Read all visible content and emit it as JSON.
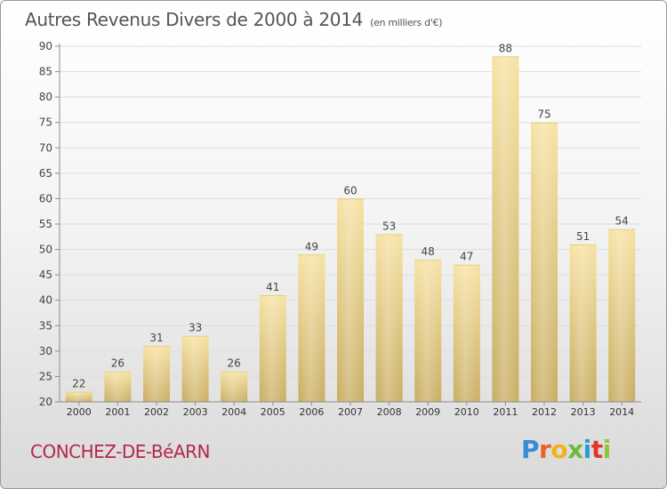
{
  "header": {
    "title": "Autres Revenus Divers de 2000 à 2014",
    "subtitle": "(en milliers d'€)"
  },
  "footer": {
    "place": "CONCHEZ-DE-BéARN",
    "brand": "Proxiti"
  },
  "brand_colors": [
    "#3a8bd6",
    "#e8632b",
    "#f2b21b",
    "#6dbb3a",
    "#2c9ad6",
    "#e0362c",
    "#8cc63f"
  ],
  "colors": {
    "bar_light": "#f7e2a2",
    "bar_dark": "#c8ad62",
    "place": "#b5274b",
    "axis": "#8c8c8c",
    "grid": "#dddddd"
  },
  "chart_data": {
    "type": "bar",
    "title": "Autres Revenus Divers de 2000 à 2014",
    "subtitle": "(en milliers d'€)",
    "xlabel": "",
    "ylabel": "",
    "categories": [
      "2000",
      "2001",
      "2002",
      "2003",
      "2004",
      "2005",
      "2006",
      "2007",
      "2008",
      "2009",
      "2010",
      "2011",
      "2012",
      "2013",
      "2014"
    ],
    "values": [
      22,
      26,
      31,
      33,
      26,
      41,
      49,
      60,
      53,
      48,
      47,
      88,
      75,
      51,
      54
    ],
    "ylim": [
      20,
      90
    ],
    "yticks": [
      20,
      25,
      30,
      35,
      40,
      45,
      50,
      55,
      60,
      65,
      70,
      75,
      80,
      85,
      90
    ],
    "grid": true,
    "data_labels": true
  }
}
